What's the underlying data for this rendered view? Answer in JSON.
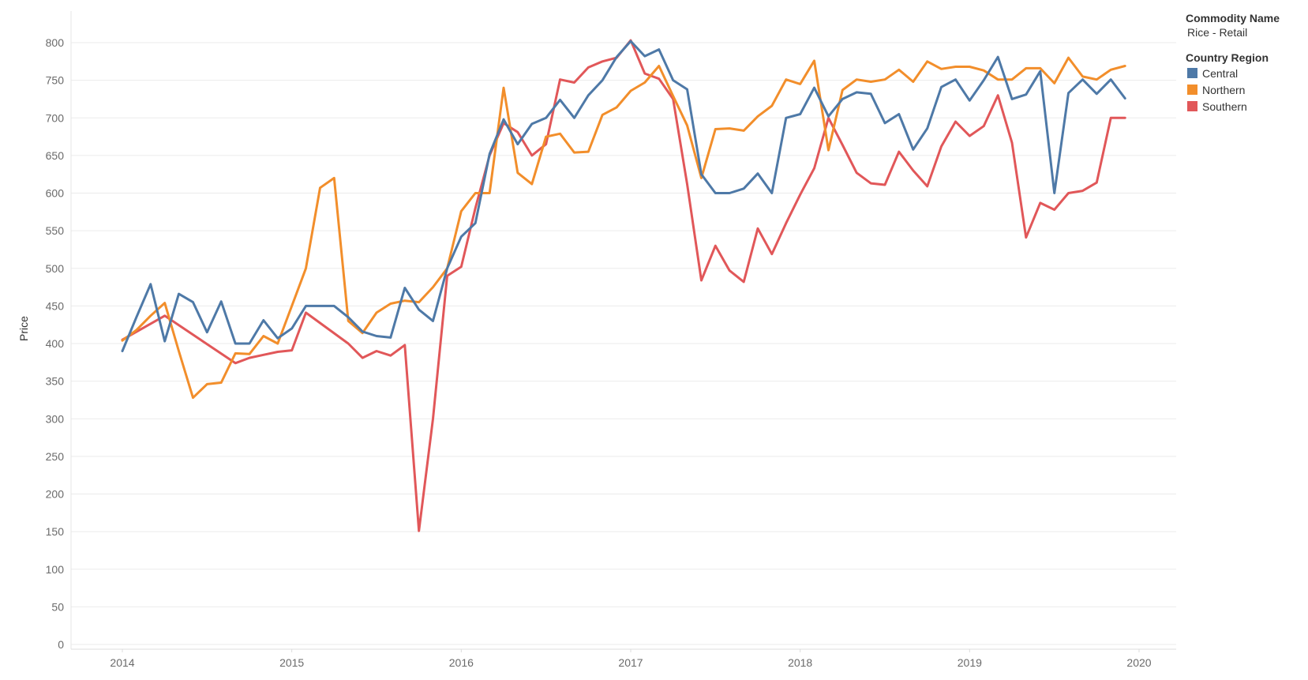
{
  "legend": {
    "filter_title": "Commodity Name",
    "filter_value": "Rice - Retail",
    "color_title": "Country Region"
  },
  "chart_data": {
    "type": "line",
    "title": "",
    "xlabel": "",
    "ylabel": "Price",
    "ylim": [
      0,
      800
    ],
    "yticks": [
      0,
      50,
      100,
      150,
      200,
      250,
      300,
      350,
      400,
      450,
      500,
      550,
      600,
      650,
      700,
      750,
      800
    ],
    "xlim": [
      2013.75,
      2020.2
    ],
    "xticks": [
      2014,
      2015,
      2016,
      2017,
      2018,
      2019,
      2020
    ],
    "grid": "horizontal",
    "legend_position": "top-right",
    "series": [
      {
        "name": "Central",
        "color": "#4e79a7",
        "points": [
          [
            2014.0,
            390
          ],
          [
            2014.083,
            435
          ],
          [
            2014.167,
            479
          ],
          [
            2014.25,
            403
          ],
          [
            2014.333,
            466
          ],
          [
            2014.417,
            455
          ],
          [
            2014.5,
            415
          ],
          [
            2014.583,
            456
          ],
          [
            2014.667,
            400
          ],
          [
            2014.75,
            400
          ],
          [
            2014.833,
            431
          ],
          [
            2014.917,
            407
          ],
          [
            2015.0,
            420
          ],
          [
            2015.083,
            450
          ],
          [
            2015.167,
            450
          ],
          [
            2015.25,
            450
          ],
          [
            2015.333,
            435
          ],
          [
            2015.417,
            416
          ],
          [
            2015.5,
            410
          ],
          [
            2015.583,
            408
          ],
          [
            2015.667,
            474
          ],
          [
            2015.75,
            445
          ],
          [
            2015.833,
            430
          ],
          [
            2015.917,
            500
          ],
          [
            2016.0,
            542
          ],
          [
            2016.083,
            560
          ],
          [
            2016.167,
            652
          ],
          [
            2016.25,
            698
          ],
          [
            2016.333,
            665
          ],
          [
            2016.417,
            692
          ],
          [
            2016.5,
            700
          ],
          [
            2016.583,
            724
          ],
          [
            2016.667,
            700
          ],
          [
            2016.75,
            730
          ],
          [
            2016.833,
            750
          ],
          [
            2016.917,
            781
          ],
          [
            2017.0,
            802
          ],
          [
            2017.083,
            782
          ],
          [
            2017.167,
            791
          ],
          [
            2017.25,
            750
          ],
          [
            2017.333,
            738
          ],
          [
            2017.417,
            625
          ],
          [
            2017.5,
            600
          ],
          [
            2017.583,
            600
          ],
          [
            2017.667,
            606
          ],
          [
            2017.75,
            626
          ],
          [
            2017.833,
            600
          ],
          [
            2017.917,
            700
          ],
          [
            2018.0,
            705
          ],
          [
            2018.083,
            740
          ],
          [
            2018.167,
            702
          ],
          [
            2018.25,
            725
          ],
          [
            2018.333,
            734
          ],
          [
            2018.417,
            732
          ],
          [
            2018.5,
            693
          ],
          [
            2018.583,
            705
          ],
          [
            2018.667,
            658
          ],
          [
            2018.75,
            686
          ],
          [
            2018.833,
            741
          ],
          [
            2018.917,
            751
          ],
          [
            2019.0,
            723
          ],
          [
            2019.083,
            750
          ],
          [
            2019.167,
            781
          ],
          [
            2019.25,
            725
          ],
          [
            2019.333,
            731
          ],
          [
            2019.417,
            762
          ],
          [
            2019.5,
            600
          ],
          [
            2019.583,
            733
          ],
          [
            2019.667,
            751
          ],
          [
            2019.75,
            732
          ],
          [
            2019.833,
            751
          ],
          [
            2019.917,
            726
          ]
        ]
      },
      {
        "name": "Northern",
        "color": "#f28e2b",
        "points": [
          [
            2014.0,
            404
          ],
          [
            2014.083,
            418
          ],
          [
            2014.167,
            437
          ],
          [
            2014.25,
            454
          ],
          [
            2014.333,
            390
          ],
          [
            2014.417,
            328
          ],
          [
            2014.5,
            346
          ],
          [
            2014.583,
            348
          ],
          [
            2014.667,
            387
          ],
          [
            2014.75,
            386
          ],
          [
            2014.833,
            410
          ],
          [
            2014.917,
            400
          ],
          [
            2015.0,
            450
          ],
          [
            2015.083,
            500
          ],
          [
            2015.167,
            607
          ],
          [
            2015.25,
            620
          ],
          [
            2015.333,
            430
          ],
          [
            2015.417,
            414
          ],
          [
            2015.5,
            441
          ],
          [
            2015.583,
            453
          ],
          [
            2015.667,
            457
          ],
          [
            2015.75,
            455
          ],
          [
            2015.833,
            475
          ],
          [
            2015.917,
            500
          ],
          [
            2016.0,
            576
          ],
          [
            2016.083,
            600
          ],
          [
            2016.167,
            600
          ],
          [
            2016.25,
            740
          ],
          [
            2016.333,
            627
          ],
          [
            2016.417,
            612
          ],
          [
            2016.5,
            675
          ],
          [
            2016.583,
            679
          ],
          [
            2016.667,
            654
          ],
          [
            2016.75,
            655
          ],
          [
            2016.833,
            704
          ],
          [
            2016.917,
            714
          ],
          [
            2017.0,
            736
          ],
          [
            2017.083,
            747
          ],
          [
            2017.167,
            769
          ],
          [
            2017.25,
            729
          ],
          [
            2017.333,
            690
          ],
          [
            2017.417,
            620
          ],
          [
            2017.5,
            685
          ],
          [
            2017.583,
            686
          ],
          [
            2017.667,
            683
          ],
          [
            2017.75,
            702
          ],
          [
            2017.833,
            716
          ],
          [
            2017.917,
            751
          ],
          [
            2018.0,
            745
          ],
          [
            2018.083,
            776
          ],
          [
            2018.167,
            657
          ],
          [
            2018.25,
            737
          ],
          [
            2018.333,
            751
          ],
          [
            2018.417,
            748
          ],
          [
            2018.5,
            751
          ],
          [
            2018.583,
            764
          ],
          [
            2018.667,
            748
          ],
          [
            2018.75,
            775
          ],
          [
            2018.833,
            765
          ],
          [
            2018.917,
            768
          ],
          [
            2019.0,
            768
          ],
          [
            2019.083,
            763
          ],
          [
            2019.167,
            751
          ],
          [
            2019.25,
            751
          ],
          [
            2019.333,
            766
          ],
          [
            2019.417,
            766
          ],
          [
            2019.5,
            746
          ],
          [
            2019.583,
            780
          ],
          [
            2019.667,
            755
          ],
          [
            2019.75,
            751
          ],
          [
            2019.833,
            764
          ],
          [
            2019.917,
            769
          ]
        ]
      },
      {
        "name": "Southern",
        "color": "#e15759",
        "points": [
          [
            2014.0,
            405
          ],
          [
            2014.25,
            437
          ],
          [
            2014.667,
            374
          ],
          [
            2014.75,
            381
          ],
          [
            2014.833,
            385
          ],
          [
            2014.917,
            389
          ],
          [
            2015.0,
            391
          ],
          [
            2015.083,
            441
          ],
          [
            2015.333,
            400
          ],
          [
            2015.417,
            381
          ],
          [
            2015.5,
            390
          ],
          [
            2015.583,
            384
          ],
          [
            2015.667,
            398
          ],
          [
            2015.75,
            151
          ],
          [
            2015.833,
            300
          ],
          [
            2015.917,
            490
          ],
          [
            2016.0,
            502
          ],
          [
            2016.083,
            580
          ],
          [
            2016.167,
            650
          ],
          [
            2016.25,
            693
          ],
          [
            2016.333,
            681
          ],
          [
            2016.417,
            650
          ],
          [
            2016.5,
            665
          ],
          [
            2016.583,
            751
          ],
          [
            2016.667,
            747
          ],
          [
            2016.75,
            767
          ],
          [
            2016.833,
            775
          ],
          [
            2016.917,
            780
          ],
          [
            2017.0,
            803
          ],
          [
            2017.083,
            759
          ],
          [
            2017.167,
            752
          ],
          [
            2017.25,
            725
          ],
          [
            2017.333,
            612
          ],
          [
            2017.417,
            484
          ],
          [
            2017.5,
            530
          ],
          [
            2017.583,
            497
          ],
          [
            2017.667,
            482
          ],
          [
            2017.75,
            553
          ],
          [
            2017.833,
            519
          ],
          [
            2017.917,
            560
          ],
          [
            2018.0,
            598
          ],
          [
            2018.083,
            633
          ],
          [
            2018.167,
            700
          ],
          [
            2018.25,
            664
          ],
          [
            2018.333,
            627
          ],
          [
            2018.417,
            613
          ],
          [
            2018.5,
            611
          ],
          [
            2018.583,
            655
          ],
          [
            2018.667,
            630
          ],
          [
            2018.75,
            609
          ],
          [
            2018.833,
            662
          ],
          [
            2018.917,
            695
          ],
          [
            2019.0,
            676
          ],
          [
            2019.083,
            689
          ],
          [
            2019.167,
            730
          ],
          [
            2019.25,
            667
          ],
          [
            2019.333,
            541
          ],
          [
            2019.417,
            587
          ],
          [
            2019.5,
            578
          ],
          [
            2019.583,
            600
          ],
          [
            2019.667,
            603
          ],
          [
            2019.75,
            614
          ],
          [
            2019.833,
            700
          ],
          [
            2019.917,
            700
          ]
        ]
      }
    ]
  }
}
